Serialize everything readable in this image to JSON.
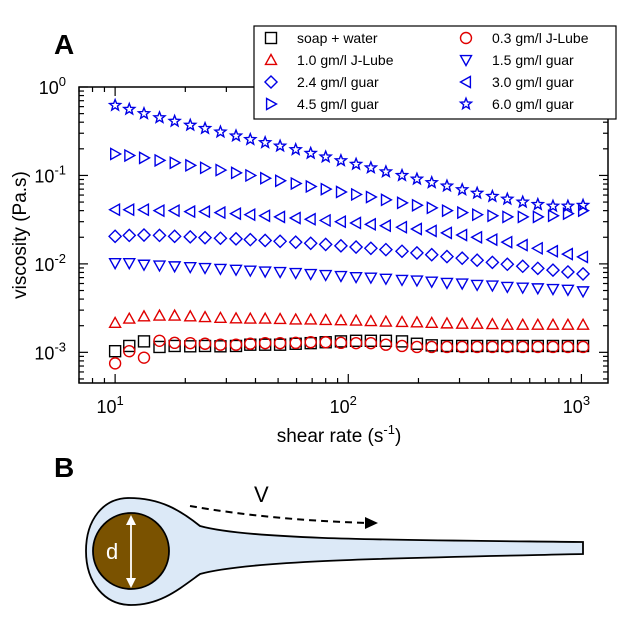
{
  "panel_a_label": "A",
  "panel_b_label": "B",
  "chart_data": {
    "type": "scatter",
    "xlabel": "shear rate (s",
    "xlabel_exp": "-1",
    "xlabel_suffix": ")",
    "ylabel": "viscosity (Pa.s)",
    "xscale": "log",
    "yscale": "log",
    "xlim": [
      7,
      1300
    ],
    "ylim": [
      0.00045,
      1.0
    ],
    "x_ticks": [
      {
        "value": 10,
        "base": "10",
        "exp": "1"
      },
      {
        "value": 100,
        "base": "10",
        "exp": "2"
      },
      {
        "value": 1000,
        "base": "10",
        "exp": "3"
      }
    ],
    "y_ticks": [
      {
        "value": 0.001,
        "base": "10",
        "exp": "-3"
      },
      {
        "value": 0.01,
        "base": "10",
        "exp": "-2"
      },
      {
        "value": 0.1,
        "base": "10",
        "exp": "-1"
      },
      {
        "value": 1,
        "base": "10",
        "exp": "0"
      }
    ],
    "legend_position": "top-right",
    "series": [
      {
        "name": "soap + water",
        "marker": "square",
        "color": "#000000",
        "points": [
          [
            10,
            0.00103
          ],
          [
            11.5,
            0.00118
          ],
          [
            13.3,
            0.00133
          ],
          [
            15.5,
            0.00115
          ],
          [
            18,
            0.00118
          ],
          [
            21,
            0.00117
          ],
          [
            24.3,
            0.00118
          ],
          [
            28.3,
            0.00117
          ],
          [
            33,
            0.00118
          ],
          [
            38,
            0.00122
          ],
          [
            44,
            0.00122
          ],
          [
            51,
            0.00122
          ],
          [
            59.5,
            0.00125
          ],
          [
            69,
            0.00127
          ],
          [
            80,
            0.0013
          ],
          [
            93,
            0.00133
          ],
          [
            108,
            0.00135
          ],
          [
            125,
            0.00135
          ],
          [
            145,
            0.00135
          ],
          [
            170,
            0.00133
          ],
          [
            197,
            0.00125
          ],
          [
            228,
            0.0012
          ],
          [
            265,
            0.00118
          ],
          [
            308,
            0.00118
          ],
          [
            357,
            0.00118
          ],
          [
            415,
            0.00118
          ],
          [
            481,
            0.00118
          ],
          [
            560,
            0.00118
          ],
          [
            650,
            0.00118
          ],
          [
            755,
            0.00118
          ],
          [
            875,
            0.00118
          ],
          [
            1016,
            0.00118
          ]
        ]
      },
      {
        "name": "0.3 gm/l J-Lube",
        "marker": "circle",
        "color": "#e00000",
        "points": [
          [
            10,
            0.00075
          ],
          [
            11.5,
            0.00103
          ],
          [
            13.3,
            0.00087
          ],
          [
            15.5,
            0.00135
          ],
          [
            18,
            0.00128
          ],
          [
            21,
            0.00127
          ],
          [
            24.3,
            0.00125
          ],
          [
            28.3,
            0.00122
          ],
          [
            33,
            0.00122
          ],
          [
            38,
            0.00125
          ],
          [
            44,
            0.00127
          ],
          [
            51,
            0.00127
          ],
          [
            59.5,
            0.00128
          ],
          [
            69,
            0.0013
          ],
          [
            80,
            0.0013
          ],
          [
            93,
            0.00128
          ],
          [
            108,
            0.00127
          ],
          [
            125,
            0.00127
          ],
          [
            145,
            0.00122
          ],
          [
            170,
            0.00118
          ],
          [
            197,
            0.00115
          ],
          [
            228,
            0.00115
          ],
          [
            265,
            0.00115
          ],
          [
            308,
            0.00115
          ],
          [
            357,
            0.00115
          ],
          [
            415,
            0.00115
          ],
          [
            481,
            0.00115
          ],
          [
            560,
            0.00115
          ],
          [
            650,
            0.00115
          ],
          [
            755,
            0.00115
          ],
          [
            875,
            0.00115
          ],
          [
            1016,
            0.00115
          ]
        ]
      },
      {
        "name": "1.0 gm/l J-Lube",
        "marker": "triangle-up",
        "color": "#e00000",
        "points": [
          [
            10,
            0.00215
          ],
          [
            11.5,
            0.0024
          ],
          [
            13.3,
            0.00255
          ],
          [
            15.5,
            0.0026
          ],
          [
            18,
            0.0026
          ],
          [
            21,
            0.00255
          ],
          [
            24.3,
            0.0025
          ],
          [
            28.3,
            0.00245
          ],
          [
            33,
            0.00242
          ],
          [
            38,
            0.0024
          ],
          [
            44,
            0.0024
          ],
          [
            51,
            0.00238
          ],
          [
            59.5,
            0.00235
          ],
          [
            69,
            0.00235
          ],
          [
            80,
            0.00232
          ],
          [
            93,
            0.0023
          ],
          [
            108,
            0.00228
          ],
          [
            125,
            0.00225
          ],
          [
            145,
            0.00222
          ],
          [
            170,
            0.0022
          ],
          [
            197,
            0.00218
          ],
          [
            228,
            0.00215
          ],
          [
            265,
            0.00212
          ],
          [
            308,
            0.0021
          ],
          [
            357,
            0.0021
          ],
          [
            415,
            0.00208
          ],
          [
            481,
            0.00205
          ],
          [
            560,
            0.00205
          ],
          [
            650,
            0.00205
          ],
          [
            755,
            0.00205
          ],
          [
            875,
            0.00205
          ],
          [
            1016,
            0.00205
          ]
        ]
      },
      {
        "name": "1.5 gm/l guar",
        "marker": "triangle-down",
        "color": "#0000e6",
        "points": [
          [
            10,
            0.0102
          ],
          [
            11.5,
            0.0102
          ],
          [
            13.3,
            0.0098
          ],
          [
            15.5,
            0.0096
          ],
          [
            18,
            0.0094
          ],
          [
            21,
            0.0092
          ],
          [
            24.3,
            0.009
          ],
          [
            28.3,
            0.0088
          ],
          [
            33,
            0.0086
          ],
          [
            38,
            0.0084
          ],
          [
            44,
            0.0082
          ],
          [
            51,
            0.0081
          ],
          [
            59.5,
            0.0079
          ],
          [
            69,
            0.0077
          ],
          [
            80,
            0.0075
          ],
          [
            93,
            0.0073
          ],
          [
            108,
            0.0071
          ],
          [
            125,
            0.007
          ],
          [
            145,
            0.0068
          ],
          [
            170,
            0.0066
          ],
          [
            197,
            0.0065
          ],
          [
            228,
            0.0063
          ],
          [
            265,
            0.0061
          ],
          [
            308,
            0.006
          ],
          [
            357,
            0.0058
          ],
          [
            415,
            0.0057
          ],
          [
            481,
            0.0055
          ],
          [
            560,
            0.0054
          ],
          [
            650,
            0.0053
          ],
          [
            755,
            0.0052
          ],
          [
            875,
            0.0051
          ],
          [
            1016,
            0.0049
          ]
        ]
      },
      {
        "name": "2.4 gm/l guar",
        "marker": "diamond",
        "color": "#0000e6",
        "points": [
          [
            10,
            0.0205
          ],
          [
            11.5,
            0.021
          ],
          [
            13.3,
            0.0212
          ],
          [
            15.5,
            0.021
          ],
          [
            18,
            0.0205
          ],
          [
            21,
            0.0202
          ],
          [
            24.3,
            0.0198
          ],
          [
            28.3,
            0.0195
          ],
          [
            33,
            0.0192
          ],
          [
            38,
            0.0188
          ],
          [
            44,
            0.0184
          ],
          [
            51,
            0.018
          ],
          [
            59.5,
            0.0176
          ],
          [
            69,
            0.0171
          ],
          [
            80,
            0.0166
          ],
          [
            93,
            0.016
          ],
          [
            108,
            0.0155
          ],
          [
            125,
            0.015
          ],
          [
            145,
            0.0145
          ],
          [
            170,
            0.0139
          ],
          [
            197,
            0.0133
          ],
          [
            228,
            0.0127
          ],
          [
            265,
            0.0121
          ],
          [
            308,
            0.0116
          ],
          [
            357,
            0.011
          ],
          [
            415,
            0.0104
          ],
          [
            481,
            0.0099
          ],
          [
            560,
            0.0094
          ],
          [
            650,
            0.0089
          ],
          [
            755,
            0.0085
          ],
          [
            875,
            0.0081
          ],
          [
            1016,
            0.0077
          ]
        ]
      },
      {
        "name": "3.0 gm/l guar",
        "marker": "triangle-left",
        "color": "#0000e6",
        "points": [
          [
            10,
            0.041
          ],
          [
            11.5,
            0.041
          ],
          [
            13.3,
            0.041
          ],
          [
            15.5,
            0.04
          ],
          [
            18,
            0.04
          ],
          [
            21,
            0.039
          ],
          [
            24.3,
            0.039
          ],
          [
            28.3,
            0.038
          ],
          [
            33,
            0.037
          ],
          [
            38,
            0.036
          ],
          [
            44,
            0.035
          ],
          [
            51,
            0.034
          ],
          [
            59.5,
            0.033
          ],
          [
            69,
            0.032
          ],
          [
            80,
            0.031
          ],
          [
            93,
            0.03
          ],
          [
            108,
            0.029
          ],
          [
            125,
            0.028
          ],
          [
            145,
            0.027
          ],
          [
            170,
            0.026
          ],
          [
            197,
            0.0248
          ],
          [
            228,
            0.0236
          ],
          [
            265,
            0.0224
          ],
          [
            308,
            0.0212
          ],
          [
            357,
            0.02
          ],
          [
            415,
            0.0188
          ],
          [
            481,
            0.0176
          ],
          [
            560,
            0.0163
          ],
          [
            650,
            0.015
          ],
          [
            755,
            0.0139
          ],
          [
            875,
            0.0129
          ],
          [
            1016,
            0.012
          ]
        ]
      },
      {
        "name": "4.5 gm/l guar",
        "marker": "triangle-right",
        "color": "#0000e6",
        "points": [
          [
            10,
            0.175
          ],
          [
            11.5,
            0.168
          ],
          [
            13.3,
            0.158
          ],
          [
            15.5,
            0.148
          ],
          [
            18,
            0.139
          ],
          [
            21,
            0.13
          ],
          [
            24.3,
            0.122
          ],
          [
            28.3,
            0.115
          ],
          [
            33,
            0.107
          ],
          [
            38,
            0.1
          ],
          [
            44,
            0.093
          ],
          [
            51,
            0.087
          ],
          [
            59.5,
            0.081
          ],
          [
            69,
            0.075
          ],
          [
            80,
            0.07
          ],
          [
            93,
            0.065
          ],
          [
            108,
            0.061
          ],
          [
            125,
            0.057
          ],
          [
            145,
            0.053
          ],
          [
            170,
            0.049
          ],
          [
            197,
            0.046
          ],
          [
            228,
            0.043
          ],
          [
            265,
            0.04
          ],
          [
            308,
            0.038
          ],
          [
            357,
            0.036
          ],
          [
            415,
            0.035
          ],
          [
            481,
            0.034
          ],
          [
            560,
            0.034
          ],
          [
            650,
            0.034
          ],
          [
            755,
            0.035
          ],
          [
            875,
            0.037
          ],
          [
            1016,
            0.04
          ]
        ]
      },
      {
        "name": "6.0 gm/l guar",
        "marker": "star",
        "color": "#0000e6",
        "points": [
          [
            10,
            0.62
          ],
          [
            11.5,
            0.56
          ],
          [
            13.3,
            0.5
          ],
          [
            15.5,
            0.45
          ],
          [
            18,
            0.41
          ],
          [
            21,
            0.37
          ],
          [
            24.3,
            0.34
          ],
          [
            28.3,
            0.31
          ],
          [
            33,
            0.28
          ],
          [
            38,
            0.255
          ],
          [
            44,
            0.235
          ],
          [
            51,
            0.215
          ],
          [
            59.5,
            0.196
          ],
          [
            69,
            0.178
          ],
          [
            80,
            0.162
          ],
          [
            93,
            0.147
          ],
          [
            108,
            0.134
          ],
          [
            125,
            0.122
          ],
          [
            145,
            0.11
          ],
          [
            170,
            0.1
          ],
          [
            197,
            0.091
          ],
          [
            228,
            0.083
          ],
          [
            265,
            0.076
          ],
          [
            308,
            0.069
          ],
          [
            357,
            0.063
          ],
          [
            415,
            0.058
          ],
          [
            481,
            0.054
          ],
          [
            560,
            0.05
          ],
          [
            650,
            0.047
          ],
          [
            755,
            0.045
          ],
          [
            875,
            0.045
          ],
          [
            1016,
            0.046
          ]
        ]
      }
    ]
  },
  "diagram": {
    "velocity_label": "V",
    "diameter_label": "d",
    "colors": {
      "fluid_fill": "#dce9f7",
      "drop_fill": "#7a5200",
      "outline": "#000000",
      "arrow": "#ffffff"
    }
  }
}
